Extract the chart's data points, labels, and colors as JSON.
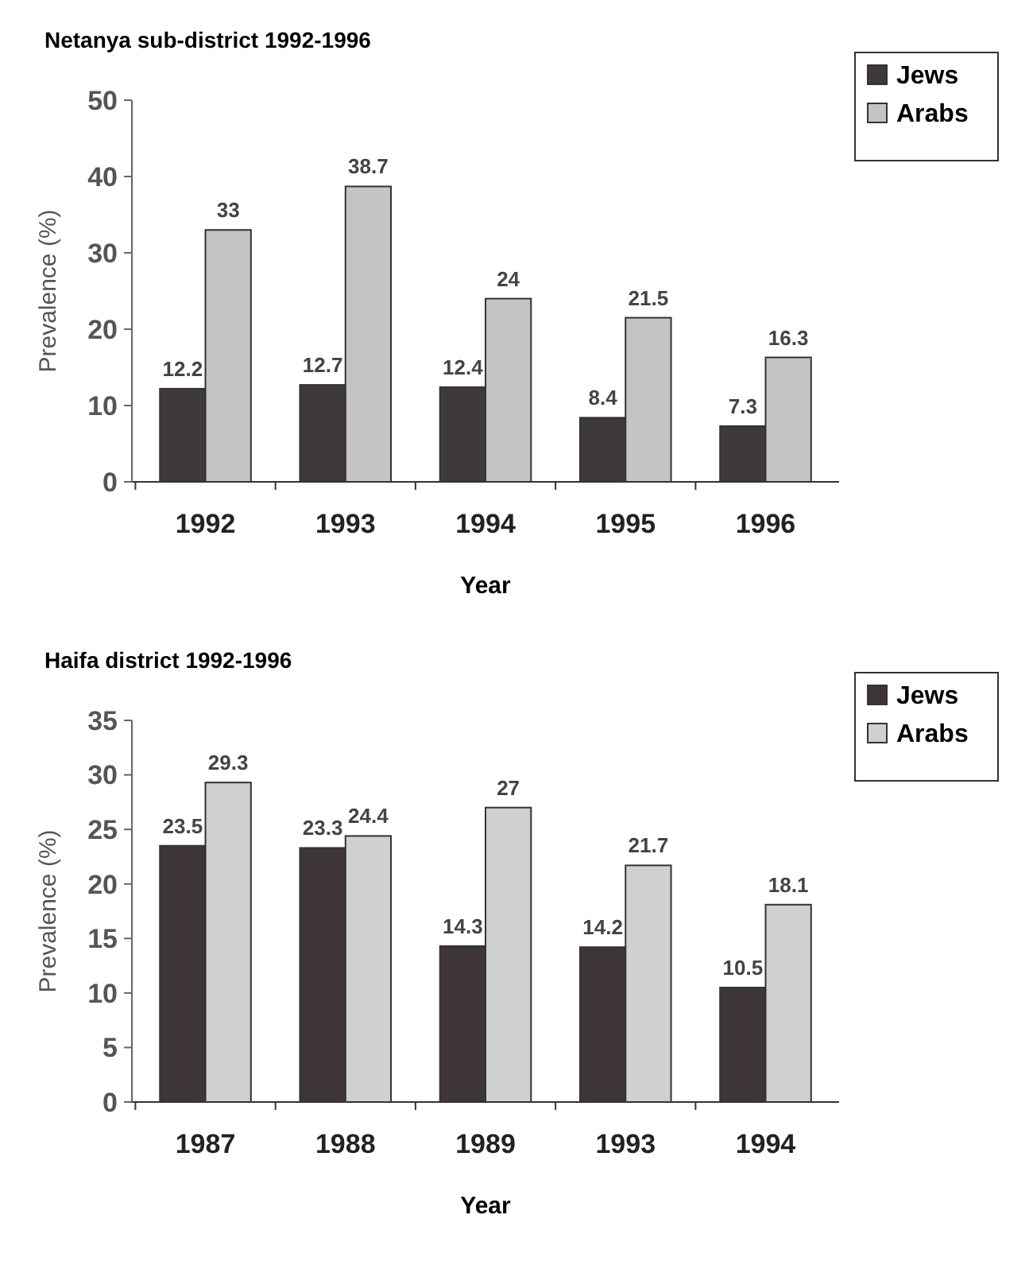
{
  "chart_data": [
    {
      "type": "bar",
      "title": "Netanya sub-district 1992-1996",
      "xlabel": "Year",
      "ylabel": "Prevalence (%)",
      "categories": [
        "1992",
        "1993",
        "1994",
        "1995",
        "1996"
      ],
      "series": [
        {
          "name": "Jews",
          "color": "#3f3a3a",
          "values": [
            12.2,
            12.7,
            12.4,
            8.4,
            7.3
          ]
        },
        {
          "name": "Arabs",
          "color": "#c4c4c4",
          "values": [
            33,
            38.7,
            24,
            21.5,
            16.3
          ]
        }
      ],
      "ylim": [
        0,
        50
      ],
      "yticks": [
        0,
        10,
        20,
        30,
        40,
        50
      ],
      "data_labels": true,
      "legend": "top right",
      "grid": false
    },
    {
      "type": "bar",
      "title": "Haifa district 1992-1996",
      "xlabel": "Year",
      "ylabel": "Prevalence (%)",
      "categories": [
        "1987",
        "1988",
        "1989",
        "1993",
        "1994"
      ],
      "series": [
        {
          "name": "Jews",
          "color": "#3d3536",
          "values": [
            23.5,
            23.3,
            14.3,
            14.2,
            10.5
          ]
        },
        {
          "name": "Arabs",
          "color": "#cfd0d0",
          "values": [
            29.3,
            24.4,
            27,
            21.7,
            18.1
          ]
        }
      ],
      "ylim": [
        0,
        35
      ],
      "yticks": [
        0,
        5,
        10,
        15,
        20,
        25,
        30,
        35
      ],
      "data_labels": true,
      "legend": "top right",
      "grid": false
    }
  ]
}
